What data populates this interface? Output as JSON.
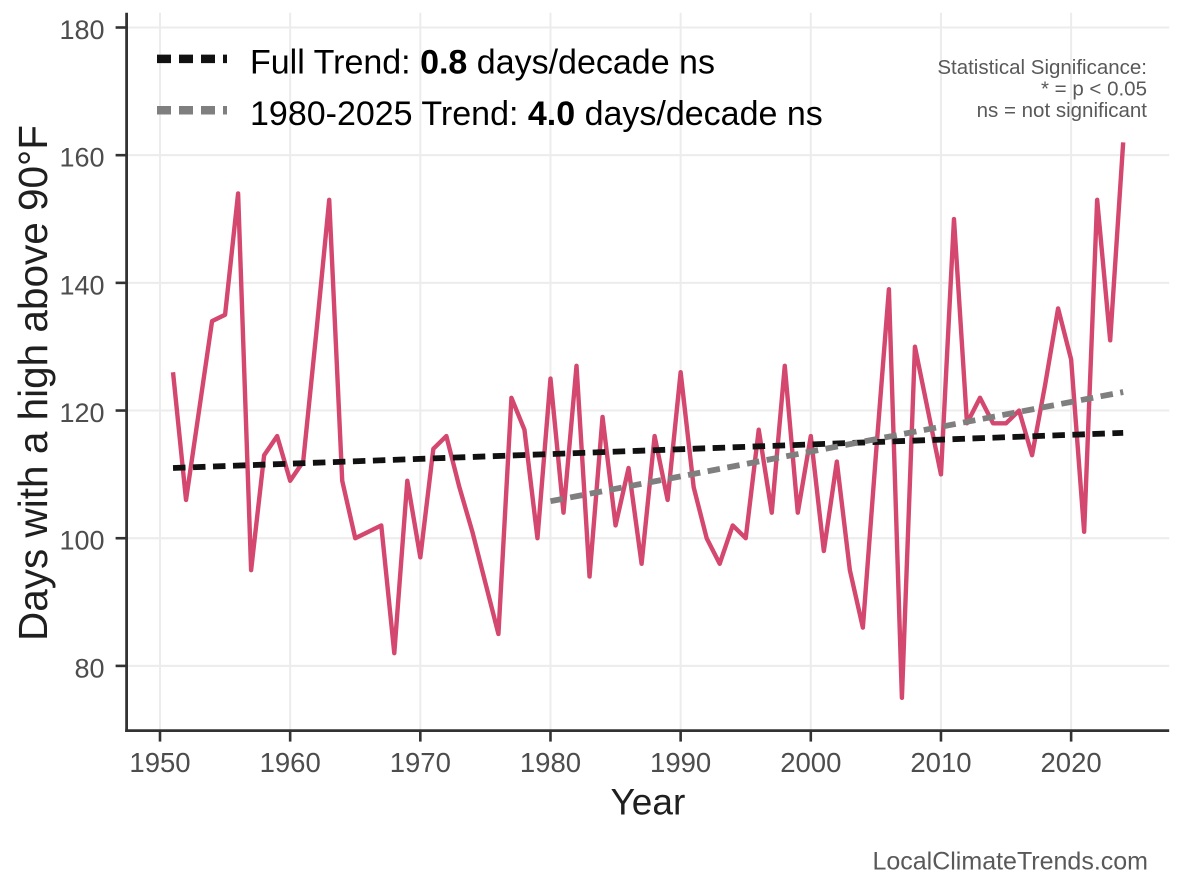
{
  "chart_data": {
    "type": "line",
    "title": "",
    "xlabel": "Year",
    "ylabel": "Days with a high above 90°F",
    "x_ticks": [
      1950,
      1960,
      1970,
      1980,
      1990,
      2000,
      2010,
      2020
    ],
    "y_ticks": [
      80,
      100,
      120,
      140,
      160,
      180
    ],
    "xlim": [
      1947.4,
      2027.5
    ],
    "ylim": [
      69.9,
      182.3
    ],
    "grid": "major-only",
    "legend_position": "top-left-inside",
    "series": [
      {
        "name": "Days with a high above 90°F per year",
        "color": "#d4476e",
        "x": [
          1951,
          1952,
          1953,
          1954,
          1955,
          1956,
          1957,
          1958,
          1959,
          1960,
          1961,
          1962,
          1963,
          1964,
          1965,
          1966,
          1967,
          1968,
          1969,
          1970,
          1971,
          1972,
          1973,
          1974,
          1975,
          1976,
          1977,
          1978,
          1979,
          1980,
          1981,
          1982,
          1983,
          1984,
          1985,
          1986,
          1987,
          1988,
          1989,
          1990,
          1991,
          1992,
          1993,
          1994,
          1995,
          1996,
          1997,
          1998,
          1999,
          2000,
          2001,
          2002,
          2003,
          2004,
          2005,
          2006,
          2007,
          2008,
          2009,
          2010,
          2011,
          2012,
          2013,
          2014,
          2015,
          2016,
          2017,
          2018,
          2019,
          2020,
          2021,
          2022,
          2023,
          2024
        ],
        "values": [
          126,
          106,
          120,
          134,
          135,
          154,
          95,
          113,
          116,
          109,
          112,
          132,
          153,
          109,
          100,
          101,
          102,
          82,
          109,
          97,
          114,
          116,
          108,
          101,
          93,
          85,
          122,
          117,
          100,
          125,
          104,
          127,
          94,
          119,
          102,
          111,
          96,
          116,
          106,
          126,
          108,
          100,
          96,
          102,
          100,
          117,
          104,
          127,
          104,
          116,
          98,
          112,
          95,
          86,
          113,
          139,
          75,
          130,
          120,
          110,
          150,
          118,
          122,
          118,
          118,
          120,
          113,
          124,
          136,
          128,
          101,
          153,
          131,
          162
        ]
      }
    ],
    "trend_lines": [
      {
        "name": "Full Trend",
        "label_prefix": "Full Trend: ",
        "label_value": "0.8",
        "label_suffix": " days/decade ns",
        "color": "#111111",
        "x0": 1951,
        "y0": 111.0,
        "x1": 2024,
        "y1": 116.5,
        "slope_days_per_decade": 0.8,
        "significance": "ns"
      },
      {
        "name": "1980-2025 Trend",
        "label_prefix": "1980-2025 Trend: ",
        "label_value": "4.0",
        "label_suffix": " days/decade ns",
        "color": "#7f7f7f",
        "x0": 1980,
        "y0": 105.8,
        "x1": 2024,
        "y1": 122.9,
        "slope_days_per_decade": 4.0,
        "significance": "ns"
      }
    ],
    "annotation": {
      "lines": [
        "Statistical Significance:",
        "* = p < 0.05",
        "ns = not significant"
      ],
      "color": "#595959"
    },
    "watermark": "LocalClimateTrends.com",
    "colors": {
      "series": "#d4476e",
      "full_trend": "#111111",
      "recent_trend": "#7f7f7f",
      "gridline": "#ececec",
      "axis_line": "#333333",
      "tick_label": "#4d4d4d",
      "axis_title": "#1f1f1f",
      "annotation": "#595959",
      "watermark": "#595959",
      "background": "#ffffff"
    }
  }
}
